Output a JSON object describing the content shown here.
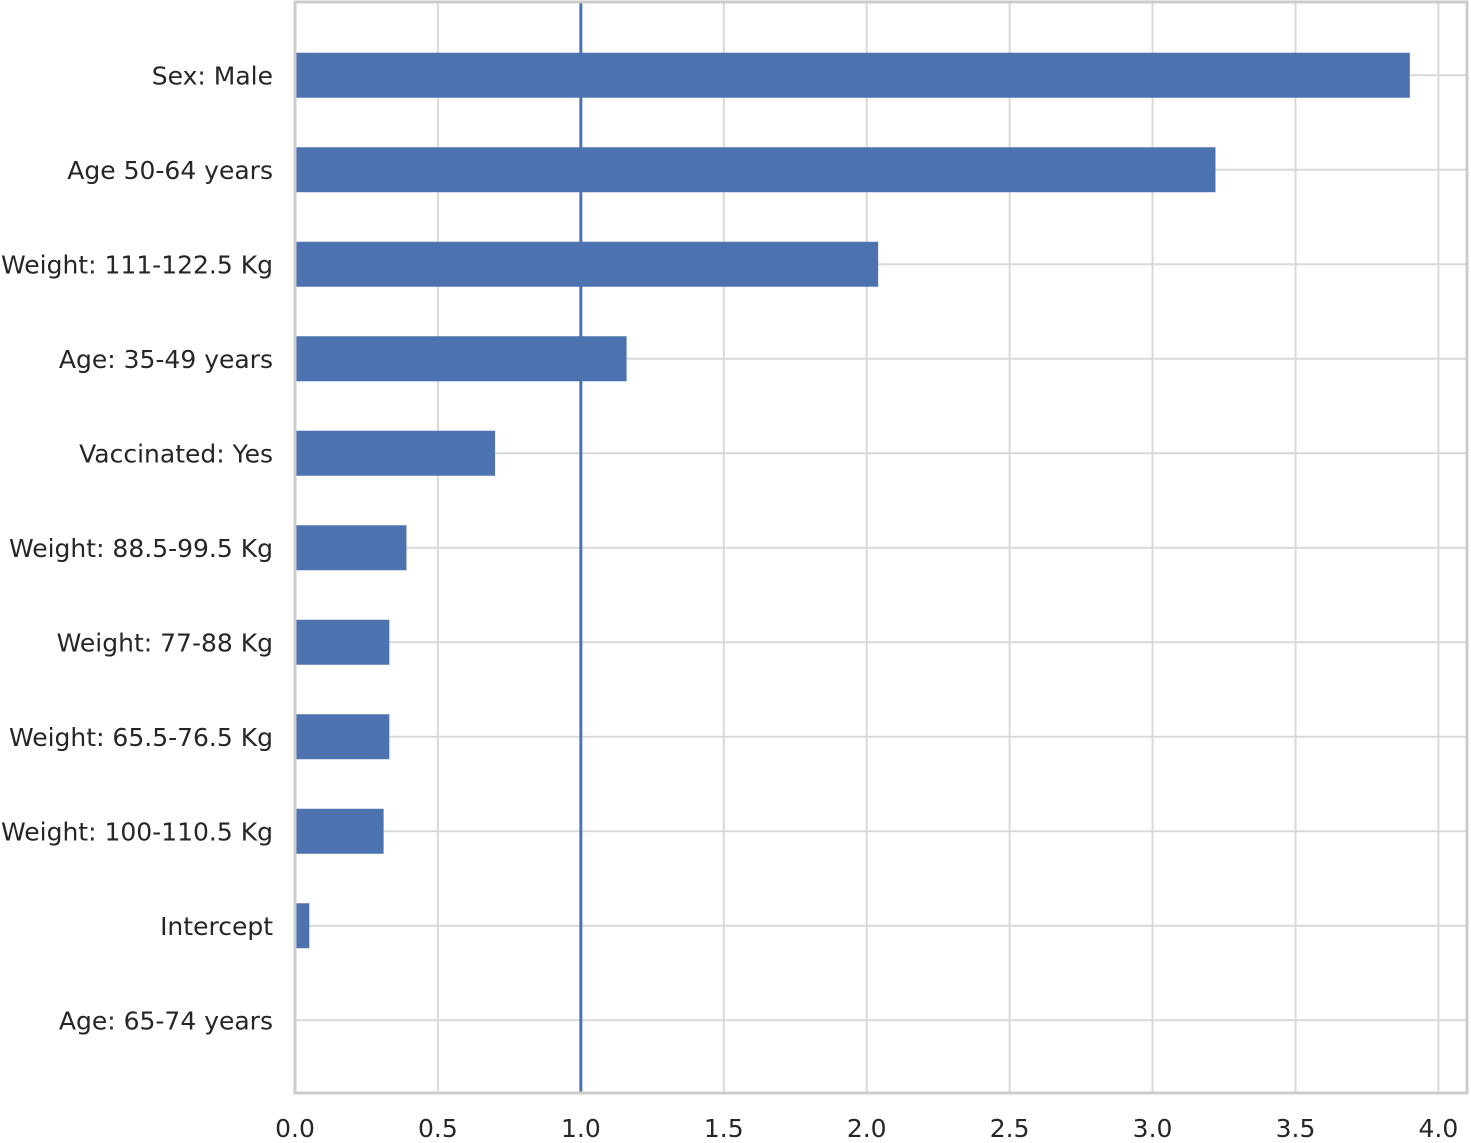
{
  "chart_data": {
    "type": "bar",
    "orientation": "horizontal",
    "categories": [
      "Sex: Male",
      "Age 50-64 years",
      "Weight: 111-122.5 Kg",
      "Age: 35-49 years",
      "Vaccinated: Yes",
      "Weight: 88.5-99.5 Kg",
      "Weight: 77-88 Kg",
      "Weight: 65.5-76.5 Kg",
      "Weight: 100-110.5 Kg",
      "Intercept",
      "Age: 65-74 years"
    ],
    "values": [
      3.9,
      3.22,
      2.04,
      1.16,
      0.7,
      0.39,
      0.33,
      0.33,
      0.31,
      0.05,
      0.0
    ],
    "reference_line": {
      "x": 1.0
    },
    "xlim": [
      0,
      4.1
    ],
    "x_ticks": [
      "0.0",
      "0.5",
      "1.0",
      "1.5",
      "2.0",
      "2.5",
      "3.0",
      "3.5",
      "4.0"
    ],
    "x_tick_values": [
      0,
      0.5,
      1.0,
      1.5,
      2.0,
      2.5,
      3.0,
      3.5,
      4.0
    ],
    "title": "",
    "xlabel": "",
    "ylabel": "",
    "grid": true,
    "colors": {
      "bar": "#4c72b0",
      "reference_line": "#4c72b0",
      "grid": "#d9d9d9",
      "frame": "#cccccc"
    }
  }
}
